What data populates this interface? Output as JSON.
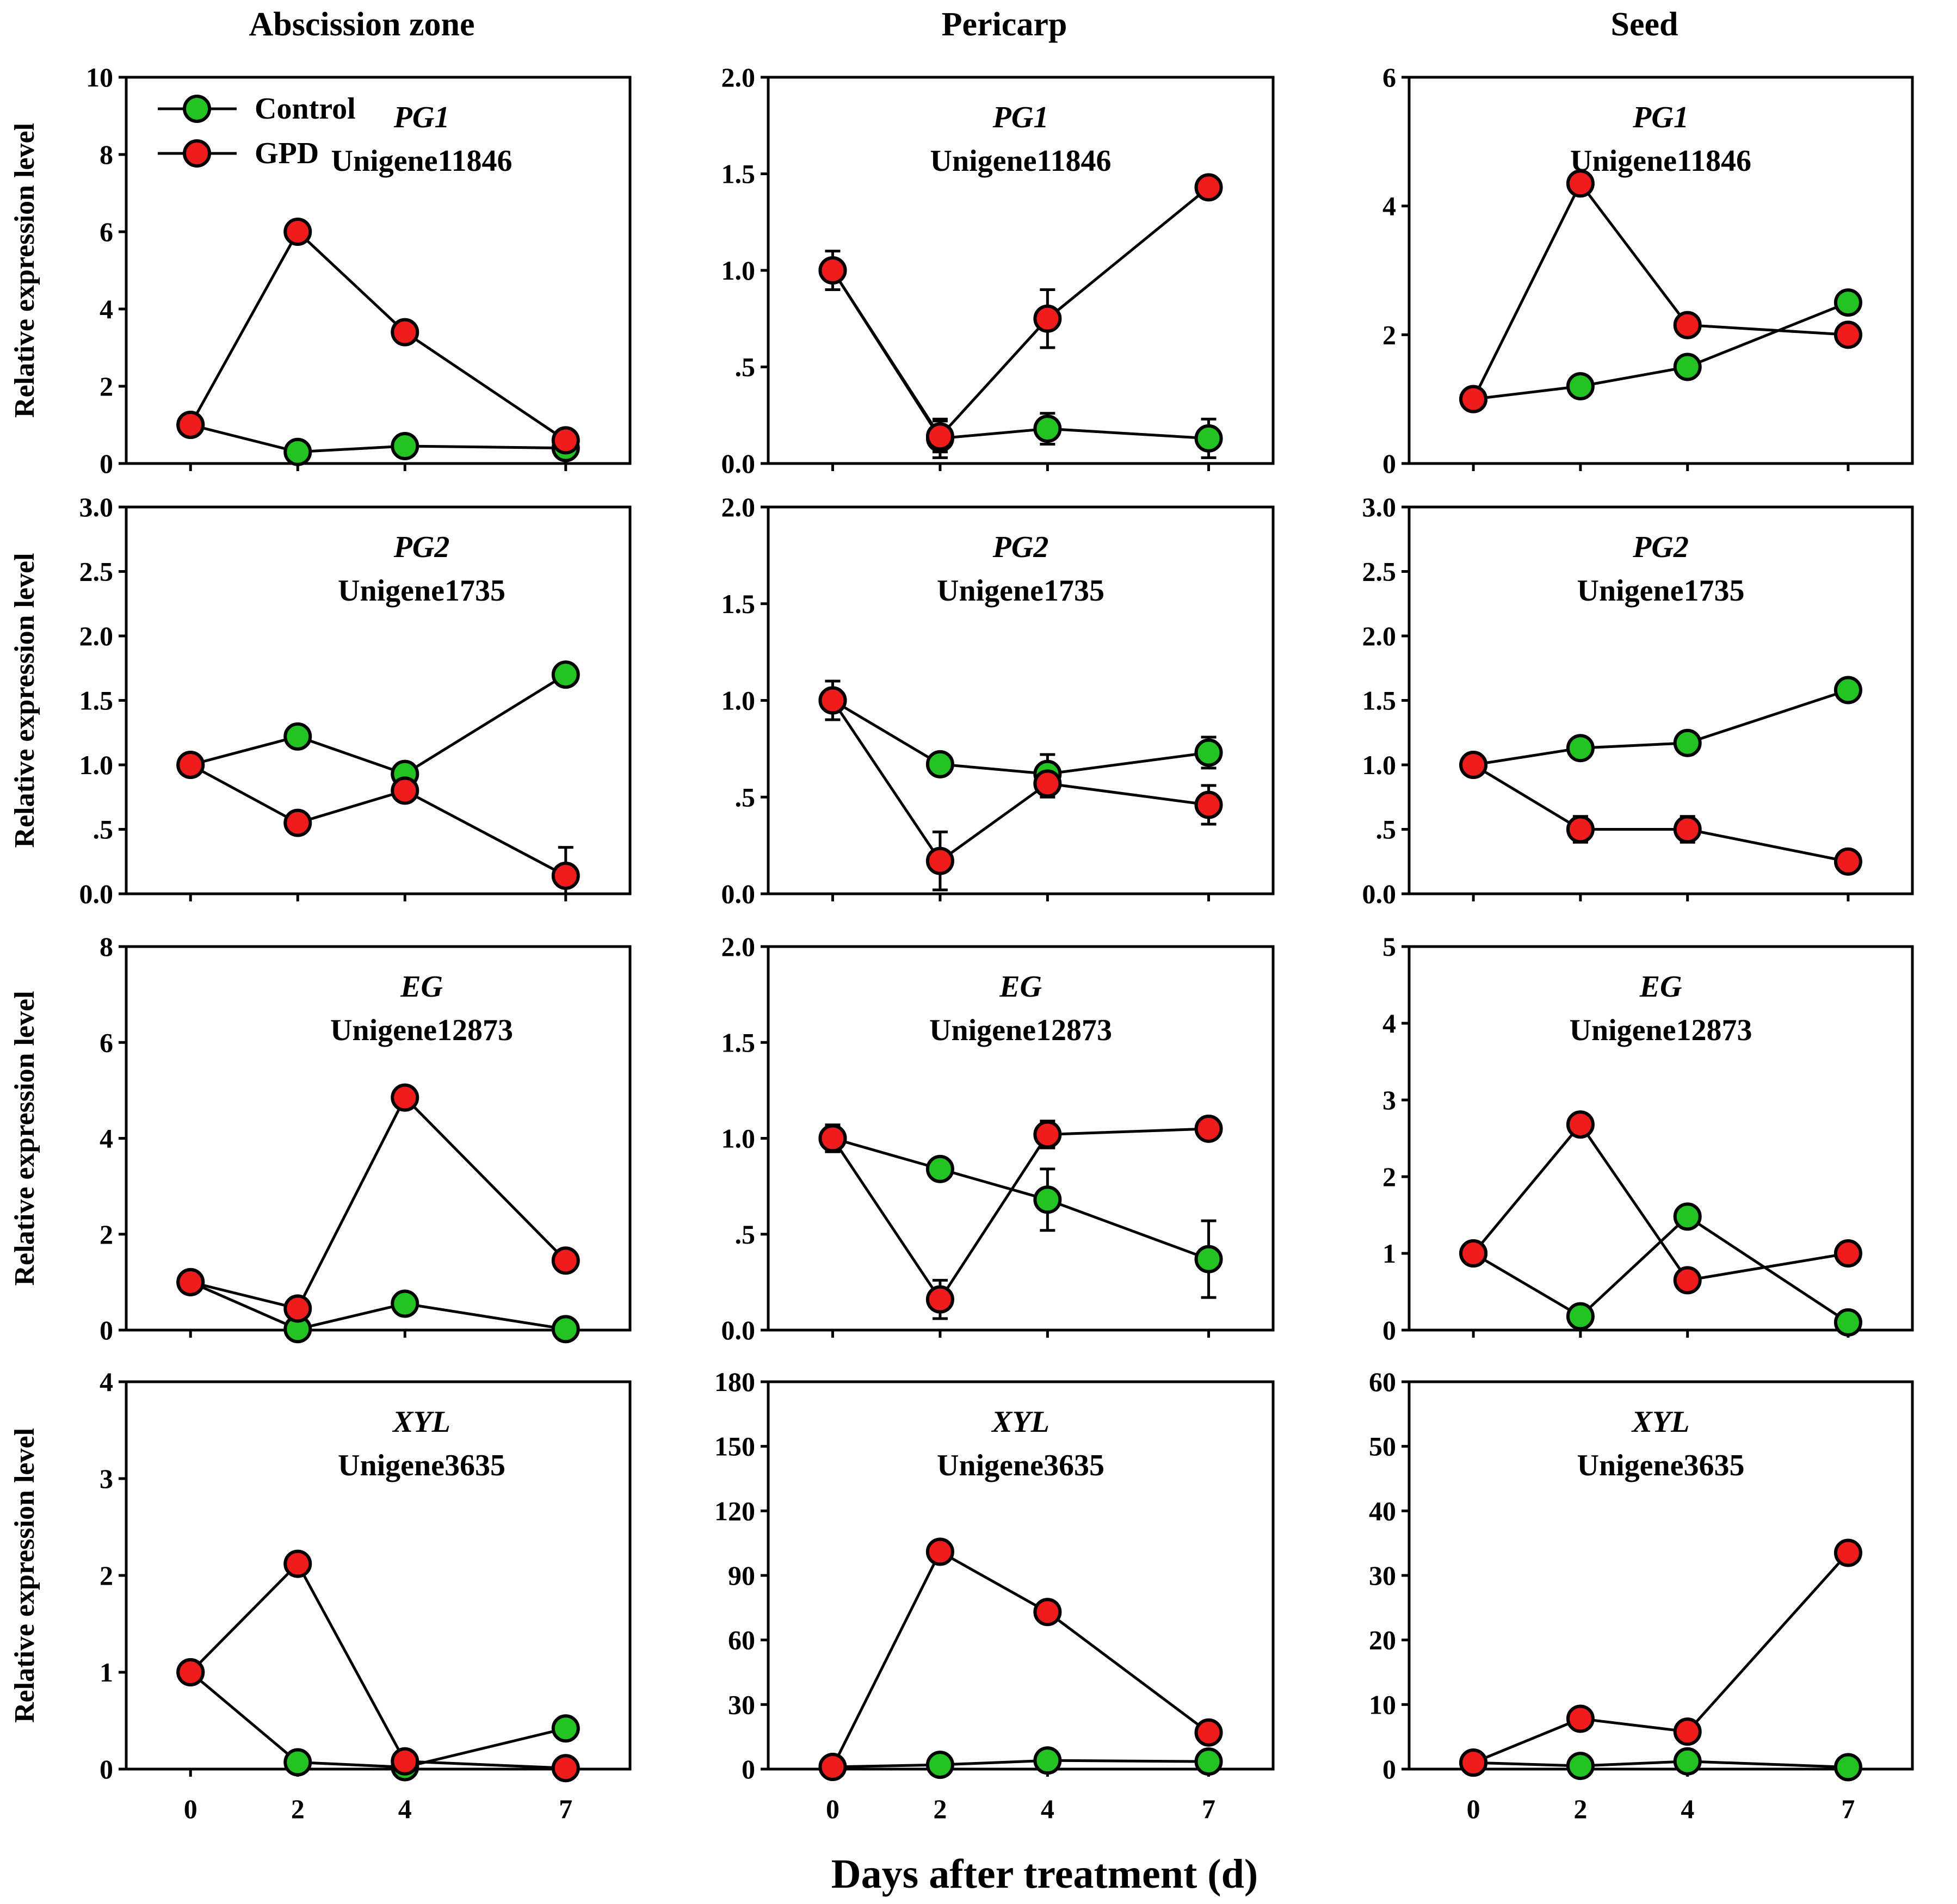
{
  "colors": {
    "control": "#22c322",
    "gpd": "#ee1c1c"
  },
  "legend": [
    "Control",
    "GPD"
  ],
  "columns": [
    "Abscission zone",
    "Pericarp",
    "Seed"
  ],
  "ylabel": "Relative expression level",
  "xlabel": "Days after treatment (d)",
  "chart_data": [
    {
      "type": "line",
      "column": "Abscission zone",
      "gene": "PG1",
      "unigene": "Unigene11846",
      "x": [
        0,
        2,
        4,
        7
      ],
      "ylim": [
        0,
        10
      ],
      "yticks": [
        "0",
        "2",
        "4",
        "6",
        "8",
        "10"
      ],
      "xticks": [
        "0",
        "2",
        "4",
        "7"
      ],
      "series": [
        {
          "name": "Control",
          "values": [
            1.0,
            0.3,
            0.45,
            0.4
          ],
          "errors": [
            0,
            0,
            0,
            0
          ]
        },
        {
          "name": "GPD",
          "values": [
            1.0,
            6.0,
            3.4,
            0.6
          ],
          "errors": [
            0,
            0,
            0,
            0
          ]
        }
      ]
    },
    {
      "type": "line",
      "column": "Pericarp",
      "gene": "PG1",
      "unigene": "Unigene11846",
      "x": [
        0,
        2,
        4,
        7
      ],
      "ylim": [
        0,
        2.0
      ],
      "yticks": [
        "0.0",
        ".5",
        "1.0",
        "1.5",
        "2.0"
      ],
      "xticks": [
        "0",
        "2",
        "4",
        "7"
      ],
      "series": [
        {
          "name": "Control",
          "values": [
            1.0,
            0.13,
            0.18,
            0.13
          ],
          "errors": [
            0,
            0.1,
            0.08,
            0.1
          ]
        },
        {
          "name": "GPD",
          "values": [
            1.0,
            0.14,
            0.75,
            1.43
          ],
          "errors": [
            0.1,
            0.08,
            0.15,
            0.05
          ]
        }
      ]
    },
    {
      "type": "line",
      "column": "Seed",
      "gene": "PG1",
      "unigene": "Unigene11846",
      "x": [
        0,
        2,
        4,
        7
      ],
      "ylim": [
        0,
        6
      ],
      "yticks": [
        "0",
        "2",
        "4",
        "6"
      ],
      "xticks": [
        "0",
        "2",
        "4",
        "7"
      ],
      "series": [
        {
          "name": "Control",
          "values": [
            1.0,
            1.2,
            1.5,
            2.5
          ],
          "errors": [
            0,
            0,
            0,
            0
          ]
        },
        {
          "name": "GPD",
          "values": [
            1.0,
            4.35,
            2.15,
            2.0
          ],
          "errors": [
            0,
            0,
            0,
            0
          ]
        }
      ]
    },
    {
      "type": "line",
      "column": "Abscission zone",
      "gene": "PG2",
      "unigene": "Unigene1735",
      "x": [
        0,
        2,
        4,
        7
      ],
      "ylim": [
        0,
        3.0
      ],
      "yticks": [
        "0.0",
        ".5",
        "1.0",
        "1.5",
        "2.0",
        "2.5",
        "3.0"
      ],
      "xticks": [
        "0",
        "2",
        "4",
        "7"
      ],
      "series": [
        {
          "name": "Control",
          "values": [
            1.0,
            1.22,
            0.93,
            1.7
          ],
          "errors": [
            0,
            0,
            0,
            0.08
          ]
        },
        {
          "name": "GPD",
          "values": [
            1.0,
            0.55,
            0.8,
            0.14
          ],
          "errors": [
            0,
            0,
            0.05,
            0.22
          ]
        }
      ]
    },
    {
      "type": "line",
      "column": "Pericarp",
      "gene": "PG2",
      "unigene": "Unigene1735",
      "x": [
        0,
        2,
        4,
        7
      ],
      "ylim": [
        0,
        2.0
      ],
      "yticks": [
        "0.0",
        ".5",
        "1.0",
        "1.5",
        "2.0"
      ],
      "xticks": [
        "0",
        "2",
        "4",
        "7"
      ],
      "series": [
        {
          "name": "Control",
          "values": [
            1.0,
            0.67,
            0.62,
            0.73
          ],
          "errors": [
            0.1,
            0,
            0.1,
            0.08
          ]
        },
        {
          "name": "GPD",
          "values": [
            1.0,
            0.17,
            0.57,
            0.46
          ],
          "errors": [
            0.1,
            0.15,
            0.07,
            0.1
          ]
        }
      ]
    },
    {
      "type": "line",
      "column": "Seed",
      "gene": "PG2",
      "unigene": "Unigene1735",
      "x": [
        0,
        2,
        4,
        7
      ],
      "ylim": [
        0,
        3.0
      ],
      "yticks": [
        "0.0",
        ".5",
        "1.0",
        "1.5",
        "2.0",
        "2.5",
        "3.0"
      ],
      "xticks": [
        "0",
        "2",
        "4",
        "7"
      ],
      "series": [
        {
          "name": "Control",
          "values": [
            1.0,
            1.13,
            1.17,
            1.58
          ],
          "errors": [
            0,
            0,
            0,
            0
          ]
        },
        {
          "name": "GPD",
          "values": [
            1.0,
            0.5,
            0.5,
            0.25
          ],
          "errors": [
            0,
            0.1,
            0.1,
            0
          ]
        }
      ]
    },
    {
      "type": "line",
      "column": "Abscission zone",
      "gene": "EG",
      "unigene": "Unigene12873",
      "x": [
        0,
        2,
        4,
        7
      ],
      "ylim": [
        0,
        8
      ],
      "yticks": [
        "0",
        "2",
        "4",
        "6",
        "8"
      ],
      "xticks": [
        "0",
        "2",
        "4",
        "7"
      ],
      "series": [
        {
          "name": "Control",
          "values": [
            1.0,
            0.02,
            0.55,
            0.02
          ],
          "errors": [
            0,
            0,
            0,
            0
          ]
        },
        {
          "name": "GPD",
          "values": [
            1.0,
            0.45,
            4.85,
            1.45
          ],
          "errors": [
            0,
            0,
            0,
            0
          ]
        }
      ]
    },
    {
      "type": "line",
      "column": "Pericarp",
      "gene": "EG",
      "unigene": "Unigene12873",
      "x": [
        0,
        2,
        4,
        7
      ],
      "ylim": [
        0,
        2.0
      ],
      "yticks": [
        "0.0",
        ".5",
        "1.0",
        "1.5",
        "2.0"
      ],
      "xticks": [
        "0",
        "2",
        "4",
        "7"
      ],
      "series": [
        {
          "name": "Control",
          "values": [
            1.0,
            0.84,
            0.68,
            0.37
          ],
          "errors": [
            0.07,
            0,
            0.16,
            0.2
          ]
        },
        {
          "name": "GPD",
          "values": [
            1.0,
            0.16,
            1.02,
            1.05
          ],
          "errors": [
            0.07,
            0.1,
            0.07,
            0
          ]
        }
      ]
    },
    {
      "type": "line",
      "column": "Seed",
      "gene": "EG",
      "unigene": "Unigene12873",
      "x": [
        0,
        2,
        4,
        7
      ],
      "ylim": [
        0,
        5
      ],
      "yticks": [
        "0",
        "1",
        "2",
        "3",
        "4",
        "5"
      ],
      "xticks": [
        "0",
        "2",
        "4",
        "7"
      ],
      "series": [
        {
          "name": "Control",
          "values": [
            1.0,
            0.18,
            1.48,
            0.1
          ],
          "errors": [
            0,
            0,
            0,
            0
          ]
        },
        {
          "name": "GPD",
          "values": [
            1.0,
            2.68,
            0.65,
            1.0
          ],
          "errors": [
            0.1,
            0,
            0,
            0.12
          ]
        }
      ]
    },
    {
      "type": "line",
      "column": "Abscission zone",
      "gene": "XYL",
      "unigene": "Unigene3635",
      "x": [
        0,
        2,
        4,
        7
      ],
      "ylim": [
        0,
        4
      ],
      "yticks": [
        "0",
        "1",
        "2",
        "3",
        "4"
      ],
      "xticks": [
        "0",
        "2",
        "4",
        "7"
      ],
      "series": [
        {
          "name": "Control",
          "values": [
            1.0,
            0.07,
            0.02,
            0.42
          ],
          "errors": [
            0,
            0,
            0,
            0
          ]
        },
        {
          "name": "GPD",
          "values": [
            1.0,
            2.12,
            0.08,
            0.01
          ],
          "errors": [
            0,
            0,
            0,
            0
          ]
        }
      ]
    },
    {
      "type": "line",
      "column": "Pericarp",
      "gene": "XYL",
      "unigene": "Unigene3635",
      "x": [
        0,
        2,
        4,
        7
      ],
      "ylim": [
        0,
        180
      ],
      "yticks": [
        "0",
        "30",
        "60",
        "90",
        "120",
        "150",
        "180"
      ],
      "xticks": [
        "0",
        "2",
        "4",
        "7"
      ],
      "series": [
        {
          "name": "Control",
          "values": [
            1.0,
            2.0,
            4.0,
            3.5
          ],
          "errors": [
            0,
            0,
            0,
            0
          ]
        },
        {
          "name": "GPD",
          "values": [
            1.0,
            101,
            73,
            17
          ],
          "errors": [
            0,
            0,
            0,
            0
          ]
        }
      ]
    },
    {
      "type": "line",
      "column": "Seed",
      "gene": "XYL",
      "unigene": "Unigene3635",
      "x": [
        0,
        2,
        4,
        7
      ],
      "ylim": [
        0,
        60
      ],
      "yticks": [
        "0",
        "10",
        "20",
        "30",
        "40",
        "50",
        "60"
      ],
      "xticks": [
        "0",
        "2",
        "4",
        "7"
      ],
      "series": [
        {
          "name": "Control",
          "values": [
            1.0,
            0.5,
            1.2,
            0.3
          ],
          "errors": [
            0,
            0,
            0,
            0
          ]
        },
        {
          "name": "GPD",
          "values": [
            1.0,
            7.8,
            5.8,
            33.5
          ],
          "errors": [
            0,
            0,
            0,
            0
          ]
        }
      ]
    }
  ]
}
